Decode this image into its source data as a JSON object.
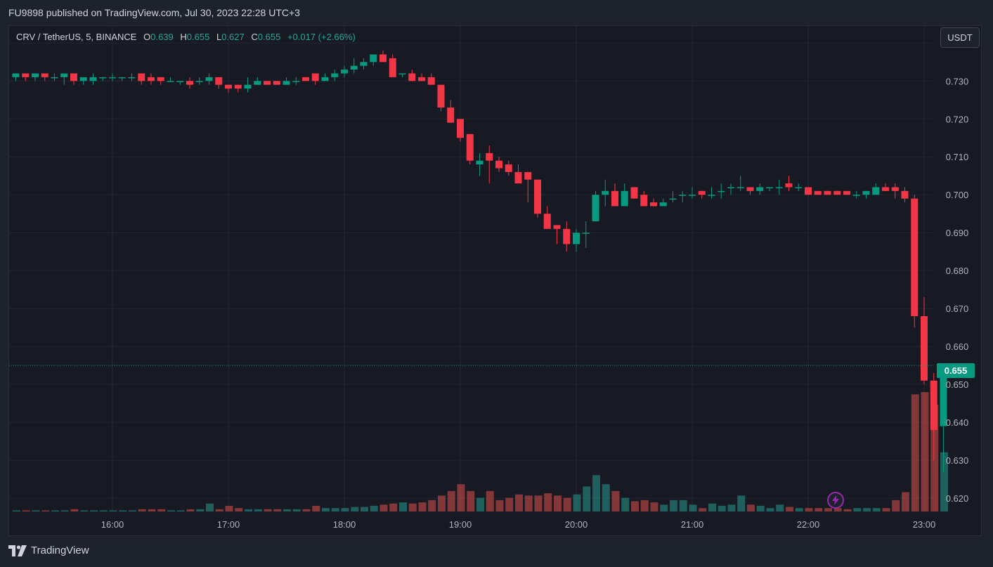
{
  "header": {
    "published": "FU9898 published on TradingView.com, Jul 30, 2023 22:28 UTC+3"
  },
  "legend": {
    "symbol": "CRV / TetherUS, 5, BINANCE",
    "o_label": "O",
    "o_value": "0.639",
    "h_label": "H",
    "h_value": "0.655",
    "l_label": "L",
    "l_value": "0.627",
    "c_label": "C",
    "c_value": "0.655",
    "change": "+0.017 (+2.66%)"
  },
  "currency_button": "USDT",
  "last_price": "0.655",
  "footer": {
    "brand": "TradingView"
  },
  "icons": {
    "lightning": "lightning-icon",
    "logo": "tradingview-logo-icon"
  },
  "colors": {
    "up": "#089981",
    "down": "#f23645",
    "up_volume": "#26a69a",
    "down_volume": "#ef5350",
    "background": "#181a23"
  },
  "chart_data": {
    "type": "candlestick",
    "timeframe": "5",
    "exchange": "BINANCE",
    "x_tick_labels": [
      "16:00",
      "17:00",
      "18:00",
      "19:00",
      "20:00",
      "21:00",
      "22:00",
      "23:00"
    ],
    "y_tick_labels": [
      "0.740",
      "0.730",
      "0.720",
      "0.710",
      "0.700",
      "0.690",
      "0.680",
      "0.670",
      "0.660",
      "0.650",
      "0.640",
      "0.630",
      "0.620"
    ],
    "ylim": [
      0.6165,
      0.7445
    ],
    "first_bar_time": "15:10",
    "bar_minutes": 5,
    "last_price_line": 0.655,
    "candles": [
      [
        0.731,
        0.732,
        0.73,
        0.732,
        1
      ],
      [
        0.732,
        0.732,
        0.73,
        0.731,
        1
      ],
      [
        0.731,
        0.732,
        0.73,
        0.732,
        1
      ],
      [
        0.732,
        0.732,
        0.73,
        0.731,
        1
      ],
      [
        0.731,
        0.732,
        0.73,
        0.731,
        1
      ],
      [
        0.731,
        0.732,
        0.729,
        0.732,
        1
      ],
      [
        0.732,
        0.732,
        0.729,
        0.73,
        2
      ],
      [
        0.73,
        0.731,
        0.729,
        0.731,
        1
      ],
      [
        0.73,
        0.732,
        0.729,
        0.731,
        1
      ],
      [
        0.731,
        0.731,
        0.73,
        0.731,
        1
      ],
      [
        0.731,
        0.732,
        0.73,
        0.731,
        1
      ],
      [
        0.731,
        0.731,
        0.73,
        0.731,
        1
      ],
      [
        0.731,
        0.732,
        0.73,
        0.731,
        1
      ],
      [
        0.732,
        0.732,
        0.729,
        0.73,
        2
      ],
      [
        0.731,
        0.732,
        0.729,
        0.73,
        2
      ],
      [
        0.731,
        0.731,
        0.729,
        0.73,
        2
      ],
      [
        0.73,
        0.731,
        0.73,
        0.73,
        1
      ],
      [
        0.73,
        0.73,
        0.729,
        0.73,
        1
      ],
      [
        0.73,
        0.731,
        0.728,
        0.729,
        2
      ],
      [
        0.73,
        0.731,
        0.729,
        0.73,
        2
      ],
      [
        0.73,
        0.732,
        0.729,
        0.731,
        7
      ],
      [
        0.731,
        0.731,
        0.728,
        0.729,
        2
      ],
      [
        0.729,
        0.729,
        0.727,
        0.728,
        5
      ],
      [
        0.729,
        0.729,
        0.727,
        0.728,
        3
      ],
      [
        0.728,
        0.731,
        0.727,
        0.729,
        2
      ],
      [
        0.729,
        0.731,
        0.729,
        0.73,
        2
      ],
      [
        0.73,
        0.73,
        0.729,
        0.729,
        2
      ],
      [
        0.73,
        0.73,
        0.729,
        0.729,
        2
      ],
      [
        0.729,
        0.731,
        0.729,
        0.73,
        2
      ],
      [
        0.73,
        0.731,
        0.729,
        0.73,
        2
      ],
      [
        0.731,
        0.731,
        0.73,
        0.73,
        2
      ],
      [
        0.732,
        0.732,
        0.729,
        0.73,
        5
      ],
      [
        0.73,
        0.732,
        0.73,
        0.731,
        3
      ],
      [
        0.731,
        0.733,
        0.73,
        0.732,
        3
      ],
      [
        0.732,
        0.734,
        0.731,
        0.733,
        3
      ],
      [
        0.733,
        0.736,
        0.732,
        0.734,
        4
      ],
      [
        0.734,
        0.736,
        0.733,
        0.735,
        4
      ],
      [
        0.735,
        0.737,
        0.734,
        0.737,
        5
      ],
      [
        0.737,
        0.738,
        0.735,
        0.735,
        6
      ],
      [
        0.736,
        0.737,
        0.731,
        0.731,
        7
      ],
      [
        0.732,
        0.732,
        0.731,
        0.732,
        8
      ],
      [
        0.732,
        0.733,
        0.73,
        0.73,
        7
      ],
      [
        0.731,
        0.732,
        0.73,
        0.73,
        8
      ],
      [
        0.731,
        0.732,
        0.729,
        0.729,
        10
      ],
      [
        0.729,
        0.729,
        0.722,
        0.723,
        14
      ],
      [
        0.723,
        0.725,
        0.719,
        0.719,
        18
      ],
      [
        0.72,
        0.72,
        0.714,
        0.715,
        24
      ],
      [
        0.716,
        0.716,
        0.708,
        0.709,
        18
      ],
      [
        0.708,
        0.711,
        0.705,
        0.709,
        12
      ],
      [
        0.711,
        0.713,
        0.703,
        0.709,
        18
      ],
      [
        0.709,
        0.71,
        0.706,
        0.707,
        10
      ],
      [
        0.708,
        0.709,
        0.705,
        0.706,
        12
      ],
      [
        0.706,
        0.708,
        0.704,
        0.703,
        15
      ],
      [
        0.706,
        0.706,
        0.698,
        0.704,
        14
      ],
      [
        0.704,
        0.704,
        0.694,
        0.695,
        14
      ],
      [
        0.695,
        0.697,
        0.691,
        0.691,
        16
      ],
      [
        0.692,
        0.692,
        0.687,
        0.691,
        14
      ],
      [
        0.691,
        0.693,
        0.685,
        0.687,
        12
      ],
      [
        0.687,
        0.691,
        0.685,
        0.69,
        15
      ],
      [
        0.69,
        0.693,
        0.686,
        0.69,
        22
      ],
      [
        0.693,
        0.701,
        0.693,
        0.7,
        32
      ],
      [
        0.7,
        0.704,
        0.697,
        0.701,
        24
      ],
      [
        0.701,
        0.703,
        0.697,
        0.697,
        18
      ],
      [
        0.697,
        0.703,
        0.697,
        0.701,
        12
      ],
      [
        0.702,
        0.702,
        0.699,
        0.699,
        9
      ],
      [
        0.7,
        0.701,
        0.697,
        0.697,
        10
      ],
      [
        0.698,
        0.699,
        0.697,
        0.697,
        8
      ],
      [
        0.697,
        0.699,
        0.697,
        0.698,
        6
      ],
      [
        0.699,
        0.701,
        0.698,
        0.699,
        10
      ],
      [
        0.7,
        0.701,
        0.698,
        0.7,
        10
      ],
      [
        0.7,
        0.702,
        0.699,
        0.7,
        6
      ],
      [
        0.701,
        0.701,
        0.699,
        0.7,
        3
      ],
      [
        0.7,
        0.702,
        0.699,
        0.7,
        7
      ],
      [
        0.701,
        0.703,
        0.699,
        0.701,
        5
      ],
      [
        0.702,
        0.703,
        0.7,
        0.702,
        6
      ],
      [
        0.702,
        0.705,
        0.701,
        0.702,
        14
      ],
      [
        0.702,
        0.702,
        0.7,
        0.701,
        6
      ],
      [
        0.701,
        0.703,
        0.7,
        0.702,
        5
      ],
      [
        0.702,
        0.702,
        0.701,
        0.702,
        3
      ],
      [
        0.702,
        0.704,
        0.7,
        0.702,
        6
      ],
      [
        0.703,
        0.705,
        0.701,
        0.702,
        4
      ],
      [
        0.702,
        0.703,
        0.701,
        0.702,
        3
      ],
      [
        0.702,
        0.702,
        0.701,
        0.7,
        3
      ],
      [
        0.701,
        0.701,
        0.7,
        0.7,
        3
      ],
      [
        0.701,
        0.701,
        0.7,
        0.7,
        3
      ],
      [
        0.701,
        0.701,
        0.7,
        0.7,
        3
      ],
      [
        0.701,
        0.701,
        0.7,
        0.7,
        2
      ],
      [
        0.7,
        0.701,
        0.699,
        0.7,
        3
      ],
      [
        0.7,
        0.701,
        0.699,
        0.701,
        3
      ],
      [
        0.7,
        0.703,
        0.7,
        0.702,
        3
      ],
      [
        0.702,
        0.703,
        0.701,
        0.701,
        3
      ],
      [
        0.702,
        0.703,
        0.699,
        0.701,
        10
      ],
      [
        0.701,
        0.702,
        0.698,
        0.699,
        17
      ],
      [
        0.699,
        0.7,
        0.665,
        0.668,
        103
      ],
      [
        0.668,
        0.673,
        0.65,
        0.651,
        105
      ],
      [
        0.651,
        0.653,
        0.63,
        0.638,
        94
      ],
      [
        0.639,
        0.655,
        0.627,
        0.655,
        52
      ]
    ]
  }
}
